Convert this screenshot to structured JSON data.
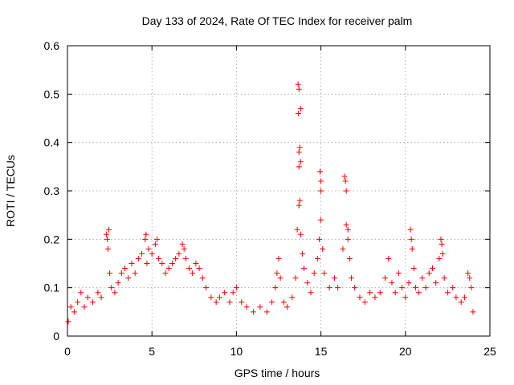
{
  "chart_data": {
    "type": "scatter",
    "title": "Day 133 of 2024, Rate Of TEC Index for receiver palm",
    "xlabel": "GPS time / hours",
    "ylabel": "ROTI / TECUs",
    "xlim": [
      0,
      25
    ],
    "ylim": [
      0,
      0.6
    ],
    "xticks": [
      0,
      5,
      10,
      15,
      20,
      25
    ],
    "xtick_labels": [
      "0",
      "5",
      "10",
      "15",
      "20",
      "25"
    ],
    "yticks": [
      0,
      0.1,
      0.2,
      0.3,
      0.4,
      0.5,
      0.6
    ],
    "ytick_labels": [
      "0",
      "0.1",
      "0.2",
      "0.3",
      "0.4",
      "0.5",
      "0.6"
    ],
    "grid": true,
    "marker": "+",
    "color": "#ff0000",
    "series": [
      {
        "points": [
          [
            0.05,
            0.03
          ],
          [
            0.2,
            0.06
          ],
          [
            0.4,
            0.05
          ],
          [
            0.6,
            0.07
          ],
          [
            0.8,
            0.09
          ],
          [
            1.0,
            0.06
          ],
          [
            1.2,
            0.08
          ],
          [
            1.5,
            0.07
          ],
          [
            1.8,
            0.09
          ],
          [
            2.0,
            0.08
          ],
          [
            2.3,
            0.21
          ],
          [
            2.35,
            0.2
          ],
          [
            2.4,
            0.18
          ],
          [
            2.45,
            0.22
          ],
          [
            2.5,
            0.13
          ],
          [
            2.6,
            0.1
          ],
          [
            2.8,
            0.09
          ],
          [
            3.0,
            0.11
          ],
          [
            3.2,
            0.13
          ],
          [
            3.4,
            0.14
          ],
          [
            3.6,
            0.12
          ],
          [
            3.8,
            0.15
          ],
          [
            4.0,
            0.13
          ],
          [
            4.2,
            0.16
          ],
          [
            4.4,
            0.17
          ],
          [
            4.6,
            0.2
          ],
          [
            4.65,
            0.21
          ],
          [
            4.7,
            0.15
          ],
          [
            4.8,
            0.18
          ],
          [
            5.0,
            0.17
          ],
          [
            5.2,
            0.19
          ],
          [
            5.3,
            0.2
          ],
          [
            5.4,
            0.16
          ],
          [
            5.6,
            0.15
          ],
          [
            5.8,
            0.13
          ],
          [
            6.0,
            0.14
          ],
          [
            6.2,
            0.15
          ],
          [
            6.4,
            0.16
          ],
          [
            6.6,
            0.17
          ],
          [
            6.8,
            0.19
          ],
          [
            6.9,
            0.18
          ],
          [
            7.0,
            0.16
          ],
          [
            7.2,
            0.14
          ],
          [
            7.4,
            0.13
          ],
          [
            7.6,
            0.15
          ],
          [
            7.8,
            0.14
          ],
          [
            8.0,
            0.12
          ],
          [
            8.2,
            0.1
          ],
          [
            8.5,
            0.08
          ],
          [
            8.8,
            0.07
          ],
          [
            9.0,
            0.08
          ],
          [
            9.3,
            0.09
          ],
          [
            9.6,
            0.07
          ],
          [
            9.8,
            0.09
          ],
          [
            10.0,
            0.1
          ],
          [
            10.3,
            0.07
          ],
          [
            10.6,
            0.06
          ],
          [
            11.0,
            0.05
          ],
          [
            11.4,
            0.06
          ],
          [
            11.8,
            0.05
          ],
          [
            12.1,
            0.07
          ],
          [
            12.3,
            0.1
          ],
          [
            12.4,
            0.13
          ],
          [
            12.5,
            0.16
          ],
          [
            12.6,
            0.12
          ],
          [
            12.8,
            0.07
          ],
          [
            13.0,
            0.06
          ],
          [
            13.3,
            0.08
          ],
          [
            13.5,
            0.12
          ],
          [
            13.6,
            0.22
          ],
          [
            13.65,
            0.52
          ],
          [
            13.7,
            0.51
          ],
          [
            13.66,
            0.46
          ],
          [
            13.8,
            0.47
          ],
          [
            13.75,
            0.39
          ],
          [
            13.7,
            0.38
          ],
          [
            13.8,
            0.36
          ],
          [
            13.7,
            0.35
          ],
          [
            13.75,
            0.28
          ],
          [
            13.7,
            0.27
          ],
          [
            13.8,
            0.21
          ],
          [
            13.9,
            0.17
          ],
          [
            14.0,
            0.14
          ],
          [
            14.2,
            0.11
          ],
          [
            14.4,
            0.09
          ],
          [
            14.6,
            0.13
          ],
          [
            14.8,
            0.16
          ],
          [
            14.9,
            0.2
          ],
          [
            15.0,
            0.24
          ],
          [
            14.95,
            0.34
          ],
          [
            15.0,
            0.32
          ],
          [
            15.0,
            0.3
          ],
          [
            15.1,
            0.18
          ],
          [
            15.2,
            0.13
          ],
          [
            15.5,
            0.1
          ],
          [
            15.8,
            0.12
          ],
          [
            16.0,
            0.1
          ],
          [
            16.3,
            0.18
          ],
          [
            16.4,
            0.33
          ],
          [
            16.45,
            0.32
          ],
          [
            16.5,
            0.3
          ],
          [
            16.5,
            0.23
          ],
          [
            16.6,
            0.22
          ],
          [
            16.6,
            0.2
          ],
          [
            16.7,
            0.16
          ],
          [
            16.8,
            0.12
          ],
          [
            17.0,
            0.1
          ],
          [
            17.3,
            0.08
          ],
          [
            17.6,
            0.07
          ],
          [
            17.9,
            0.09
          ],
          [
            18.2,
            0.08
          ],
          [
            18.5,
            0.09
          ],
          [
            18.8,
            0.12
          ],
          [
            19.0,
            0.16
          ],
          [
            19.2,
            0.11
          ],
          [
            19.4,
            0.09
          ],
          [
            19.6,
            0.13
          ],
          [
            19.8,
            0.1
          ],
          [
            20.0,
            0.08
          ],
          [
            20.2,
            0.11
          ],
          [
            20.3,
            0.22
          ],
          [
            20.35,
            0.2
          ],
          [
            20.4,
            0.18
          ],
          [
            20.5,
            0.14
          ],
          [
            20.6,
            0.1
          ],
          [
            20.8,
            0.09
          ],
          [
            21.0,
            0.12
          ],
          [
            21.2,
            0.1
          ],
          [
            21.4,
            0.13
          ],
          [
            21.6,
            0.14
          ],
          [
            21.8,
            0.11
          ],
          [
            22.0,
            0.16
          ],
          [
            22.1,
            0.2
          ],
          [
            22.15,
            0.19
          ],
          [
            22.2,
            0.17
          ],
          [
            22.3,
            0.12
          ],
          [
            22.5,
            0.09
          ],
          [
            22.8,
            0.1
          ],
          [
            23.0,
            0.08
          ],
          [
            23.3,
            0.07
          ],
          [
            23.5,
            0.08
          ],
          [
            23.7,
            0.13
          ],
          [
            23.8,
            0.12
          ],
          [
            23.9,
            0.1
          ],
          [
            24.0,
            0.05
          ]
        ]
      }
    ]
  }
}
